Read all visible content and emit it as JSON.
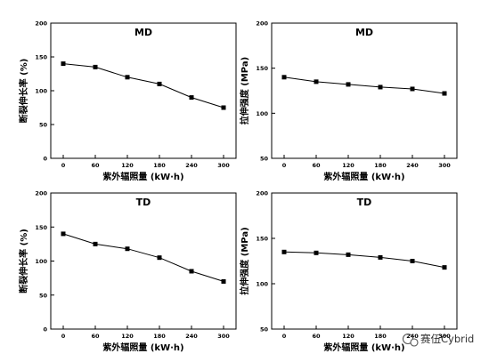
{
  "chart_data": [
    {
      "type": "line",
      "title": "MD",
      "xlabel": "紫外辐照量 (kW·h)",
      "ylabel": "断裂伸长率 (%)",
      "x": [
        0,
        60,
        120,
        180,
        240,
        300
      ],
      "y": [
        140,
        135,
        120,
        110,
        90,
        75
      ],
      "xticks": [
        "0",
        "60",
        "120",
        "180",
        "240",
        "300"
      ],
      "yticks": [
        "0",
        "50",
        "100",
        "150",
        "200"
      ],
      "ylim": [
        0,
        200
      ],
      "marker": "square",
      "grid": false
    },
    {
      "type": "line",
      "title": "MD",
      "xlabel": "紫外辐照量 (kW·h)",
      "ylabel": "拉伸强度 (MPa)",
      "x": [
        0,
        60,
        120,
        180,
        240,
        300
      ],
      "y": [
        140,
        135,
        132,
        129,
        127,
        122
      ],
      "xticks": [
        "0",
        "60",
        "120",
        "180",
        "240",
        "300"
      ],
      "yticks": [
        "50",
        "100",
        "150",
        "200"
      ],
      "ylim": [
        50,
        200
      ],
      "marker": "square",
      "grid": false
    },
    {
      "type": "line",
      "title": "TD",
      "xlabel": "紫外辐照量 (kW·h)",
      "ylabel": "断裂伸长率 (%)",
      "x": [
        0,
        60,
        120,
        180,
        240,
        300
      ],
      "y": [
        140,
        125,
        118,
        105,
        85,
        70
      ],
      "xticks": [
        "0",
        "60",
        "120",
        "180",
        "240",
        "300"
      ],
      "yticks": [
        "0",
        "50",
        "100",
        "150",
        "200"
      ],
      "ylim": [
        0,
        200
      ],
      "marker": "square",
      "grid": false
    },
    {
      "type": "line",
      "title": "TD",
      "xlabel": "紫外辐照量 (kW·h)",
      "ylabel": "拉伸强度 (MPa)",
      "x": [
        0,
        60,
        120,
        180,
        240,
        300
      ],
      "y": [
        135,
        134,
        132,
        129,
        125,
        118
      ],
      "xticks": [
        "0",
        "60",
        "120",
        "180",
        "240",
        "300"
      ],
      "yticks": [
        "50",
        "100",
        "150",
        "200"
      ],
      "ylim": [
        50,
        200
      ],
      "marker": "square",
      "grid": false
    }
  ],
  "watermark": {
    "text": "赛伍Cybrid"
  }
}
